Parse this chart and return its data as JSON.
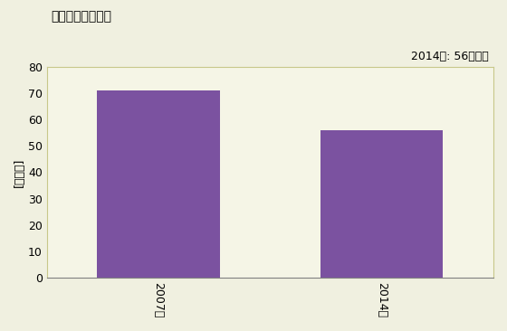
{
  "title": "卸売業の事業所数",
  "ylabel": "[事業所]",
  "categories": [
    "2007年",
    "2014年"
  ],
  "values": [
    71,
    56
  ],
  "bar_color": "#7B52A0",
  "annotation": "2014年: 56事業所",
  "ylim": [
    0,
    80
  ],
  "yticks": [
    0,
    10,
    20,
    30,
    40,
    50,
    60,
    70,
    80
  ],
  "background_color": "#F5F5E6",
  "plot_background": "#F0F0E0"
}
